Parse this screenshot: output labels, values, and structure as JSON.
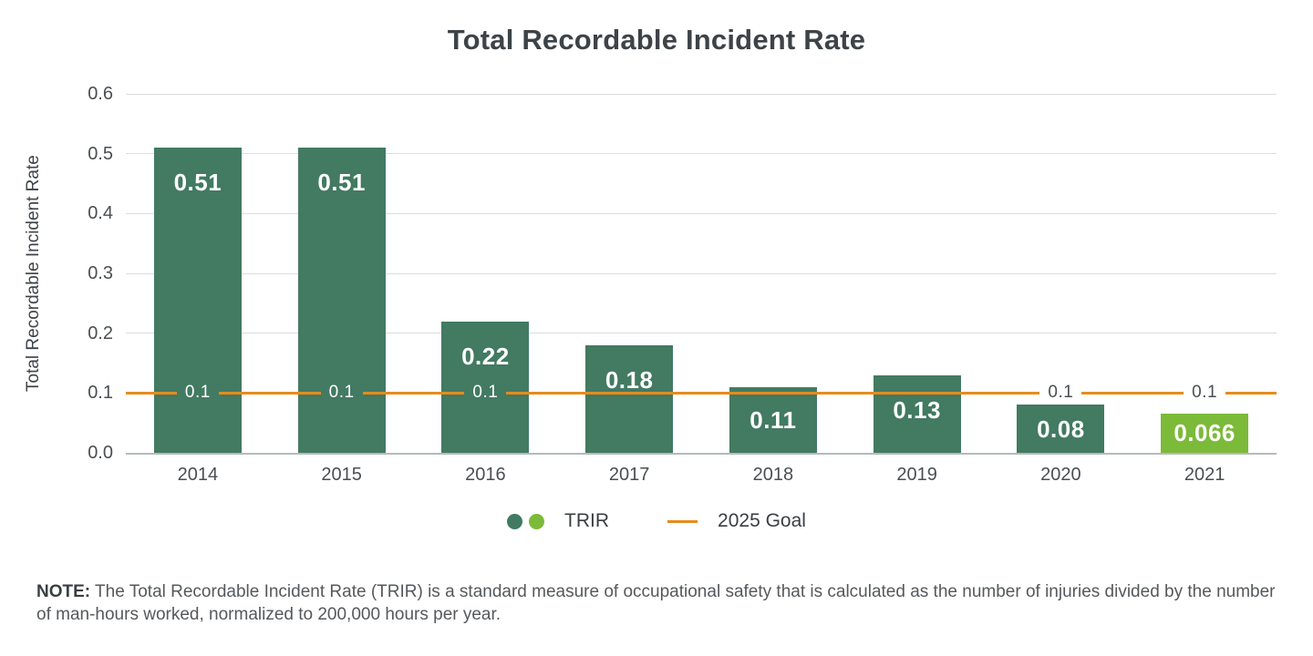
{
  "title": "Total Recordable Incident Rate",
  "colors": {
    "bar_primary": "#427a62",
    "bar_highlight": "#7cba39",
    "goal_line": "#e68c1e",
    "title_text": "#3d4347",
    "axis_text": "#4a4f52",
    "gridline": "#dadede",
    "note_text": "#55595c"
  },
  "chart_data": {
    "type": "bar",
    "title": "Total Recordable Incident Rate",
    "xlabel": "",
    "ylabel": "Total Recordable Incident Rate",
    "categories": [
      "2014",
      "2015",
      "2016",
      "2017",
      "2018",
      "2019",
      "2020",
      "2021"
    ],
    "series": [
      {
        "name": "TRIR",
        "values": [
          0.51,
          0.51,
          0.22,
          0.18,
          0.11,
          0.13,
          0.08,
          0.066
        ],
        "labels": [
          "0.51",
          "0.51",
          "0.22",
          "0.18",
          "0.11",
          "0.13",
          "0.08",
          "0.066"
        ],
        "highlight_index": 7
      }
    ],
    "goal_line": {
      "name": "2025 Goal",
      "value": 0.1,
      "label": "0.1",
      "labels": [
        {
          "index": 0,
          "variant": "on-bar"
        },
        {
          "index": 1,
          "variant": "on-bar"
        },
        {
          "index": 2,
          "variant": "on-bar"
        },
        {
          "index": 6,
          "variant": "on-white"
        },
        {
          "index": 7,
          "variant": "on-white"
        }
      ]
    },
    "ylim": [
      0,
      0.6
    ],
    "yticks": [
      "0.6",
      "0.5",
      "0.4",
      "0.3",
      "0.2",
      "0.1",
      "0.0"
    ],
    "grid": true,
    "legend_position": "bottom"
  },
  "legend": {
    "trir_label": "TRIR",
    "goal_label": "2025 Goal"
  },
  "note": {
    "prefix": "NOTE:",
    "text": " The Total Recordable Incident Rate (TRIR) is a standard measure of occupational safety that is calculated as the number of injuries divided by the number of man-hours worked, normalized to 200,000 hours per year."
  }
}
